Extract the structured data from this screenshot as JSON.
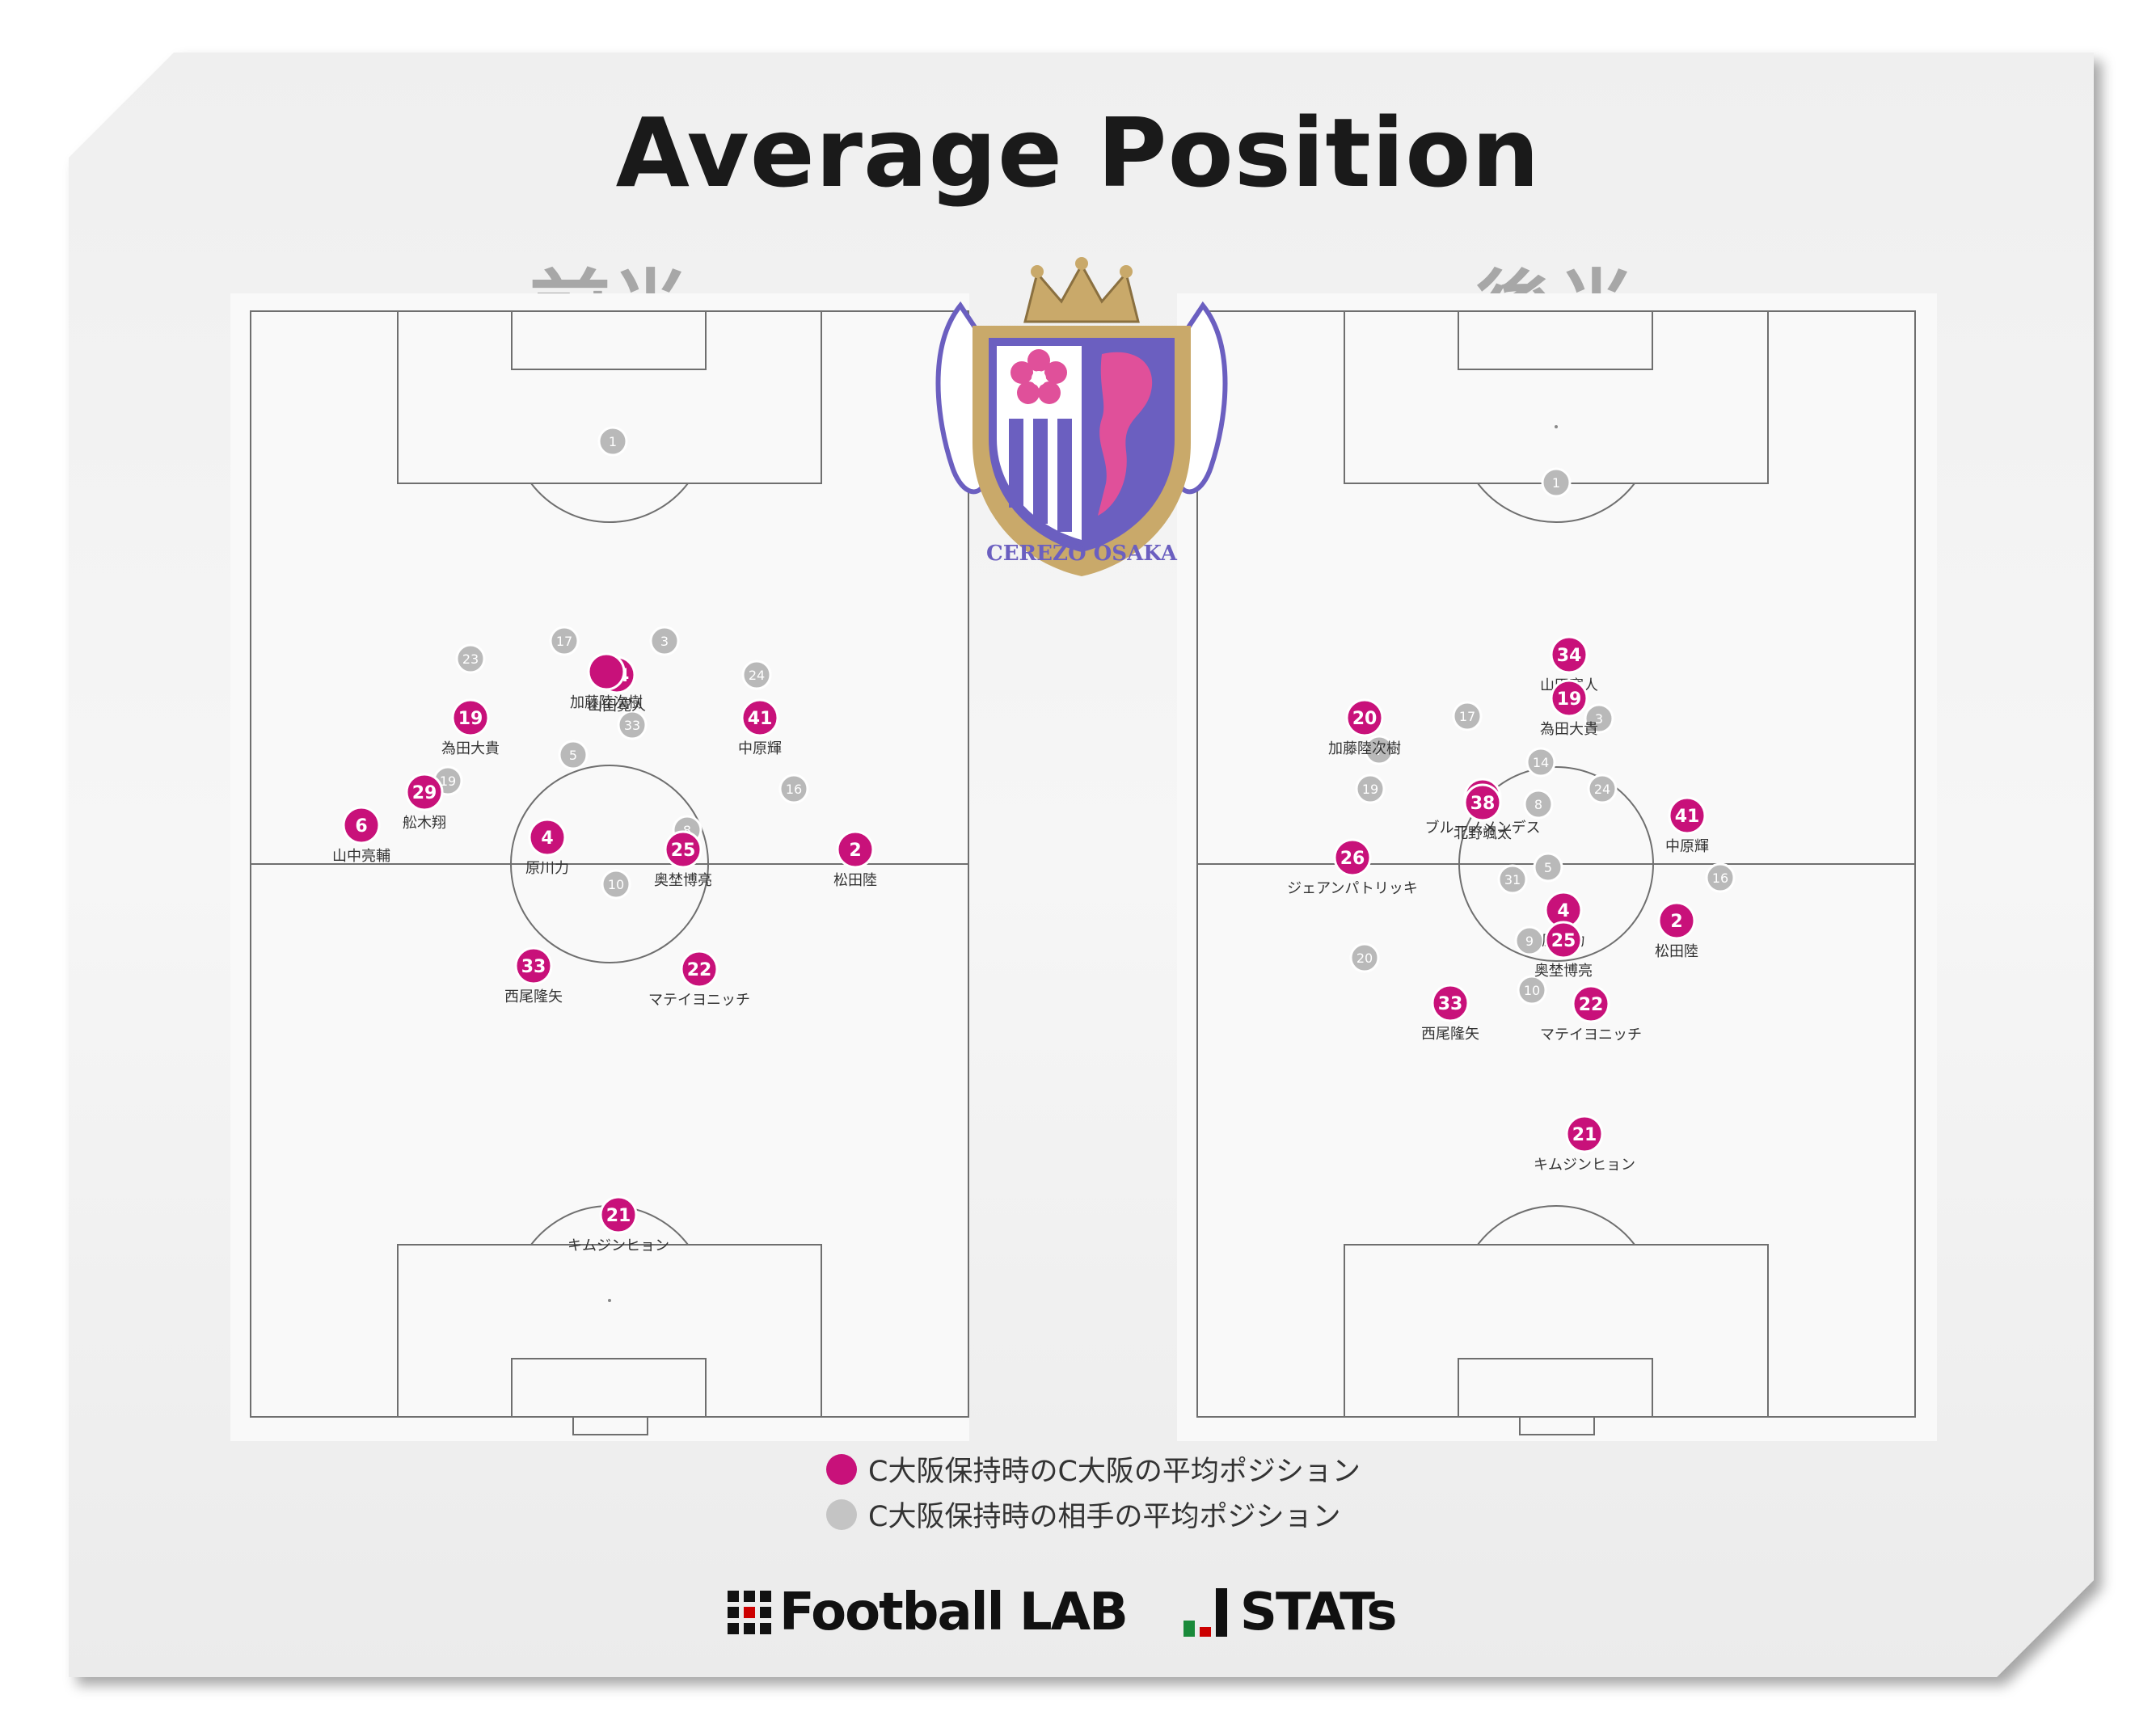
{
  "title": "Average Position",
  "halves": [
    {
      "label": "前半",
      "players": [
        {
          "team": "home",
          "num": "6",
          "name": "山中亮輔"
        },
        {
          "team": "home",
          "num": "19",
          "name": "為田大貴"
        },
        {
          "team": "home",
          "num": "29",
          "name": "舩木翔"
        },
        {
          "team": "home",
          "num": "4",
          "name": "原川力"
        },
        {
          "team": "home",
          "num": "34",
          "name": "山田寛人"
        },
        {
          "team": "home",
          "num": "",
          "name": "加藤陸次樹"
        },
        {
          "team": "home",
          "num": "41",
          "name": "中原輝"
        },
        {
          "team": "home",
          "num": "25",
          "name": "奥埜博亮"
        },
        {
          "team": "home",
          "num": "2",
          "name": "松田陸"
        },
        {
          "team": "home",
          "num": "33",
          "name": "西尾隆矢"
        },
        {
          "team": "home",
          "num": "22",
          "name": "マテイヨニッチ"
        },
        {
          "team": "home",
          "num": "21",
          "name": "キムジンヒョン"
        },
        {
          "team": "away",
          "num": "1"
        },
        {
          "team": "away",
          "num": "17"
        },
        {
          "team": "away",
          "num": "3"
        },
        {
          "team": "away",
          "num": "23"
        },
        {
          "team": "away",
          "num": "24"
        },
        {
          "team": "away",
          "num": "33"
        },
        {
          "team": "away",
          "num": "5"
        },
        {
          "team": "away",
          "num": "19"
        },
        {
          "team": "away",
          "num": "16"
        },
        {
          "team": "away",
          "num": "8"
        },
        {
          "team": "away",
          "num": "10"
        }
      ]
    },
    {
      "label": "後半",
      "players": [
        {
          "team": "home",
          "num": "20",
          "name": "加藤陸次樹"
        },
        {
          "team": "home",
          "num": "34",
          "name": "山田寛人"
        },
        {
          "team": "home",
          "num": "19",
          "name": "為田大貴"
        },
        {
          "team": "home",
          "num": "11",
          "name": "ブルーノメンデス"
        },
        {
          "team": "home",
          "num": "38",
          "name": "北野颯太"
        },
        {
          "team": "home",
          "num": "41",
          "name": "中原輝"
        },
        {
          "team": "home",
          "num": "26",
          "name": "ジェアンパトリッキ"
        },
        {
          "team": "home",
          "num": "4",
          "name": "原川力"
        },
        {
          "team": "home",
          "num": "25",
          "name": "奥埜博亮"
        },
        {
          "team": "home",
          "num": "2",
          "name": "松田陸"
        },
        {
          "team": "home",
          "num": "33",
          "name": "西尾隆矢"
        },
        {
          "team": "home",
          "num": "22",
          "name": "マテイヨニッチ"
        },
        {
          "team": "home",
          "num": "21",
          "name": "キムジンヒョン"
        },
        {
          "team": "away",
          "num": "1"
        },
        {
          "team": "away",
          "num": "17"
        },
        {
          "team": "away",
          "num": "3"
        },
        {
          "team": "away",
          "num": "14"
        },
        {
          "team": "away",
          "num": "19"
        },
        {
          "team": "away",
          "num": "24"
        },
        {
          "team": "away",
          "num": "8"
        },
        {
          "team": "away",
          "num": "5"
        },
        {
          "team": "away",
          "num": "31"
        },
        {
          "team": "away",
          "num": "16"
        },
        {
          "team": "away",
          "num": "9"
        },
        {
          "team": "away",
          "num": "20"
        },
        {
          "team": "away",
          "num": "10"
        },
        {
          "team": "away",
          "num": "7"
        }
      ]
    }
  ],
  "legend": [
    {
      "label": "C大阪保持時のC大阪の平均ポジション",
      "color": "#c8117a"
    },
    {
      "label": "C大阪保持時の相手の平均ポジション",
      "color": "#c4c4c4"
    }
  ],
  "crest_text": "CEREZO OSAKA",
  "footer": {
    "brand1": "Football LAB",
    "brand2": "STATs"
  },
  "colors": {
    "home": "#c8117a",
    "away": "#b9b9b9",
    "half_label": "#a7a7a7"
  }
}
